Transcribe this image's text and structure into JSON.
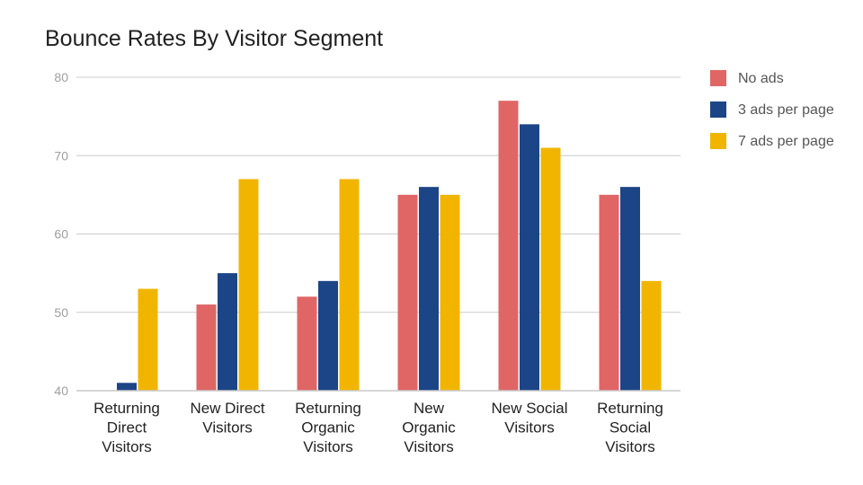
{
  "chart_data": {
    "type": "bar",
    "title": "Bounce Rates By Visitor Segment",
    "xlabel": "",
    "ylabel": "",
    "ylim": [
      40,
      80
    ],
    "yticks": [
      40,
      50,
      60,
      70,
      80
    ],
    "grid": true,
    "legend_position": "right",
    "categories": [
      [
        "Returning",
        "Direct",
        "Visitors"
      ],
      [
        "New Direct",
        "Visitors"
      ],
      [
        "Returning",
        "Organic",
        "Visitors"
      ],
      [
        "New",
        "Organic",
        "Visitors"
      ],
      [
        "New Social",
        "Visitors"
      ],
      [
        "Returning",
        "Social",
        "Visitors"
      ]
    ],
    "series": [
      {
        "name": "No ads",
        "color": "#e06666",
        "values": [
          null,
          51,
          52,
          65,
          77,
          65
        ]
      },
      {
        "name": "3 ads per page",
        "color": "#1c4587",
        "values": [
          41,
          55,
          54,
          66,
          74,
          66
        ]
      },
      {
        "name": "7 ads per page",
        "color": "#f1b500",
        "values": [
          53,
          67,
          67,
          65,
          71,
          54
        ]
      }
    ]
  }
}
